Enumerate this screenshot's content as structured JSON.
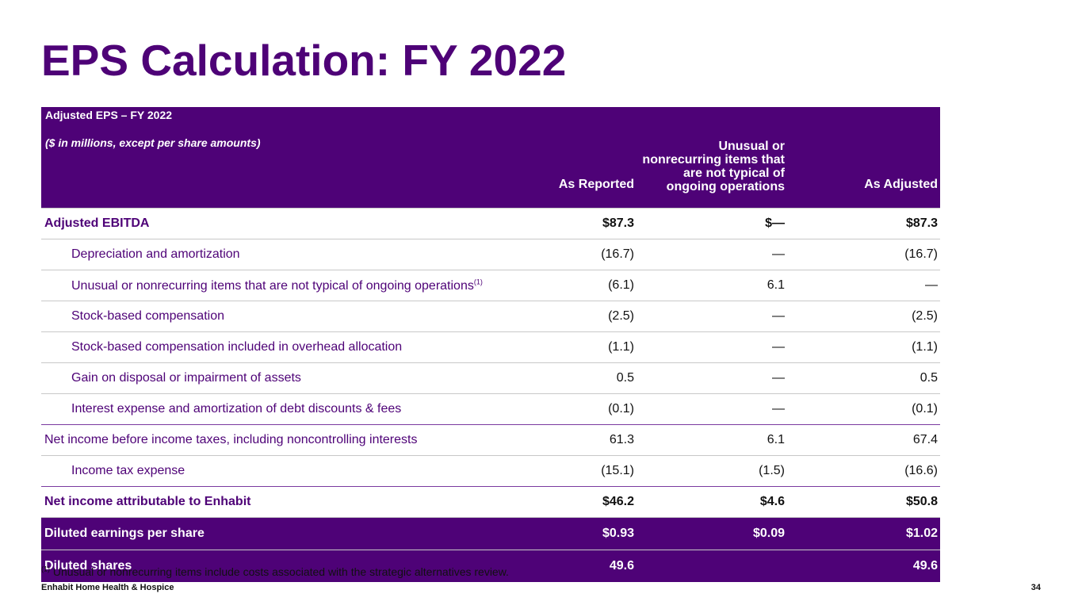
{
  "title": "EPS Calculation: FY 2022",
  "table": {
    "header": {
      "label_title": "Adjusted EPS – FY 2022",
      "label_subtitle": "($ in millions, except per share amounts)",
      "col_reported": "As Reported",
      "col_unusual": "Unusual or nonrecurring items that are not typical of ongoing operations",
      "col_adjusted": "As Adjusted"
    },
    "rows": [
      {
        "label": "Adjusted EBITDA",
        "reported": "$87.3",
        "unusual": "$—",
        "adjusted": "$87.3"
      },
      {
        "label": "Depreciation and amortization",
        "reported": "(16.7)",
        "unusual": "—",
        "adjusted": "(16.7)"
      },
      {
        "label": "Unusual or nonrecurring items that are not typical of ongoing operations",
        "footnote_mark": "(1)",
        "reported": "(6.1)",
        "unusual": "6.1",
        "adjusted": "—"
      },
      {
        "label": "Stock-based compensation",
        "reported": "(2.5)",
        "unusual": "—",
        "adjusted": "(2.5)"
      },
      {
        "label": "Stock-based compensation included in overhead allocation",
        "reported": "(1.1)",
        "unusual": "—",
        "adjusted": "(1.1)"
      },
      {
        "label": "Gain on disposal or impairment of assets",
        "reported": "0.5",
        "unusual": "—",
        "adjusted": "0.5"
      },
      {
        "label": "Interest expense and amortization of debt discounts & fees",
        "reported": "(0.1)",
        "unusual": "—",
        "adjusted": "(0.1)"
      },
      {
        "label": "Net income before income taxes, including noncontrolling interests",
        "reported": "61.3",
        "unusual": "6.1",
        "adjusted": "67.4"
      },
      {
        "label": "Income tax expense",
        "reported": "(15.1)",
        "unusual": "(1.5)",
        "adjusted": "(16.6)"
      },
      {
        "label": "Net income attributable to Enhabit",
        "reported": "$46.2",
        "unusual": "$4.6",
        "adjusted": "$50.8"
      },
      {
        "label": "Diluted earnings per share",
        "reported": "$0.93",
        "unusual": "$0.09",
        "adjusted": "$1.02"
      },
      {
        "label": "Diluted shares",
        "reported": "49.6",
        "unusual": "",
        "adjusted": "49.6"
      }
    ]
  },
  "footnote": {
    "mark": "(1)",
    "text": " Unusual or nonrecurring items include costs associated with the strategic alternatives review."
  },
  "footer": {
    "company": "Enhabit Home Health & Hospice",
    "page_number": "34"
  },
  "colors": {
    "brand_purple": "#4e0277"
  }
}
